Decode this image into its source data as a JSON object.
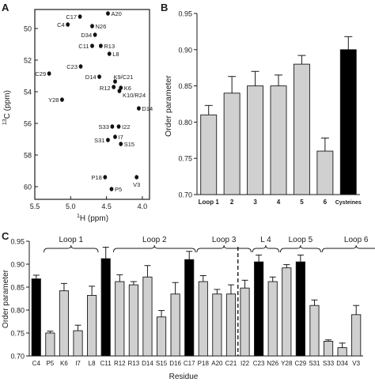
{
  "colors": {
    "light_bar": "#d0d0d0",
    "dark_bar": "#000000",
    "axis": "#1a1a1a"
  },
  "chart_data": [
    {
      "panel": "A",
      "type": "scatter",
      "xlabel_sup": "1",
      "xlabel": "H (ppm)",
      "ylabel_sup": "13",
      "ylabel": "C (ppm)",
      "xlim": [
        5.5,
        3.9
      ],
      "ylim": [
        60.8,
        48.8
      ],
      "x_reversed": true,
      "y_reversed": true,
      "xticks": [
        "5.5",
        "5.0",
        "4.5",
        "4.0"
      ],
      "xtick_values": [
        5.5,
        5.0,
        4.5,
        4.0
      ],
      "yticks": [
        "50",
        "52",
        "54",
        "56",
        "58",
        "60"
      ],
      "ytick_values": [
        50,
        52,
        54,
        56,
        58,
        60
      ],
      "points": [
        {
          "label": "C17",
          "x": 4.87,
          "y": 49.25
        },
        {
          "label": "A20",
          "x": 4.48,
          "y": 49.05
        },
        {
          "label": "C4",
          "x": 5.04,
          "y": 49.75
        },
        {
          "label": "N26",
          "x": 4.7,
          "y": 49.85
        },
        {
          "label": "D34",
          "x": 4.66,
          "y": 50.4
        },
        {
          "label": "C11",
          "x": 4.7,
          "y": 51.1
        },
        {
          "label": "R13",
          "x": 4.58,
          "y": 51.1
        },
        {
          "label": "L8",
          "x": 4.46,
          "y": 51.6
        },
        {
          "label": "C23",
          "x": 4.86,
          "y": 52.4
        },
        {
          "label": "C29",
          "x": 5.3,
          "y": 52.85
        },
        {
          "label": "D14",
          "x": 4.6,
          "y": 53.05
        },
        {
          "label": "K9/C21",
          "x": 4.38,
          "y": 53.35
        },
        {
          "label": "R12",
          "x": 4.4,
          "y": 53.7
        },
        {
          "label": "K6",
          "x": 4.3,
          "y": 53.75
        },
        {
          "label": "K10/R24",
          "x": 4.32,
          "y": 53.95
        },
        {
          "label": "Y28",
          "x": 5.12,
          "y": 54.5
        },
        {
          "label": "D14",
          "x": 4.05,
          "y": 55.05
        },
        {
          "label": "S33",
          "x": 4.42,
          "y": 56.2
        },
        {
          "label": "I22",
          "x": 4.33,
          "y": 56.2
        },
        {
          "label": "I7",
          "x": 4.38,
          "y": 56.85
        },
        {
          "label": "S31",
          "x": 4.48,
          "y": 57.05
        },
        {
          "label": "S15",
          "x": 4.3,
          "y": 57.3
        },
        {
          "label": "P18",
          "x": 4.52,
          "y": 59.4
        },
        {
          "label": "V3",
          "x": 4.08,
          "y": 59.4
        },
        {
          "label": "P5",
          "x": 4.43,
          "y": 60.15
        }
      ]
    },
    {
      "panel": "B",
      "type": "bar",
      "ylabel": "Order parameter",
      "ylim": [
        0.7,
        0.95
      ],
      "yticks": [
        "0.70",
        "0.75",
        "0.80",
        "0.85",
        "0.90",
        "0.95"
      ],
      "ytick_values": [
        0.7,
        0.75,
        0.8,
        0.85,
        0.9,
        0.95
      ],
      "categories": [
        "Loop 1",
        "2",
        "3",
        "4",
        "5",
        "6",
        "Cysteines"
      ],
      "values": [
        0.81,
        0.84,
        0.85,
        0.85,
        0.88,
        0.76,
        0.9
      ],
      "errors": [
        0.013,
        0.023,
        0.02,
        0.015,
        0.012,
        0.018,
        0.018
      ],
      "dark": [
        false,
        false,
        false,
        false,
        false,
        false,
        true
      ]
    },
    {
      "panel": "C",
      "type": "bar",
      "xlabel": "Residue",
      "ylabel": "Order parameter",
      "ylim": [
        0.7,
        0.95
      ],
      "yticks": [
        "0.70",
        "0.75",
        "0.80",
        "0.85",
        "0.90",
        "0.95"
      ],
      "ytick_values": [
        0.7,
        0.75,
        0.8,
        0.85,
        0.9,
        0.95
      ],
      "groups": [
        {
          "label": "Loop 1",
          "from": 1,
          "to": 4
        },
        {
          "label": "Loop 2",
          "from": 6,
          "to": 11
        },
        {
          "label": "Loop 3",
          "from": 12,
          "to": 15
        },
        {
          "label": "L 4",
          "from": 16,
          "to": 17
        },
        {
          "label": "Loop 5",
          "from": 18,
          "to": 20
        },
        {
          "label": "Loop 6",
          "from": 21,
          "to": 25
        }
      ],
      "divider_after_index": 15,
      "categories": [
        "C4",
        "P5",
        "K6",
        "I7",
        "L8",
        "C11",
        "R12",
        "R13",
        "D14",
        "S15",
        "D16",
        "C17",
        "P18",
        "A20",
        "C21",
        "I22",
        "C23",
        "N26",
        "Y28",
        "C29",
        "S31",
        "S33",
        "D34",
        "V3"
      ],
      "values": [
        0.868,
        0.75,
        0.842,
        0.755,
        0.832,
        0.912,
        0.862,
        0.855,
        0.872,
        0.785,
        0.835,
        0.91,
        0.862,
        0.835,
        0.835,
        0.848,
        0.905,
        0.862,
        0.892,
        0.905,
        0.81,
        0.732,
        0.718,
        0.79
      ],
      "errors": [
        0.008,
        0.004,
        0.016,
        0.012,
        0.02,
        0.025,
        0.015,
        0.007,
        0.025,
        0.014,
        0.025,
        0.018,
        0.013,
        0.01,
        0.02,
        0.017,
        0.015,
        0.01,
        0.007,
        0.015,
        0.012,
        0.003,
        0.01,
        0.02
      ],
      "dark": [
        true,
        false,
        false,
        false,
        false,
        true,
        false,
        false,
        false,
        false,
        false,
        true,
        false,
        false,
        false,
        false,
        true,
        false,
        false,
        true,
        false,
        false,
        false,
        false
      ]
    }
  ],
  "panels": {
    "a": "A",
    "b": "B",
    "c": "C"
  }
}
